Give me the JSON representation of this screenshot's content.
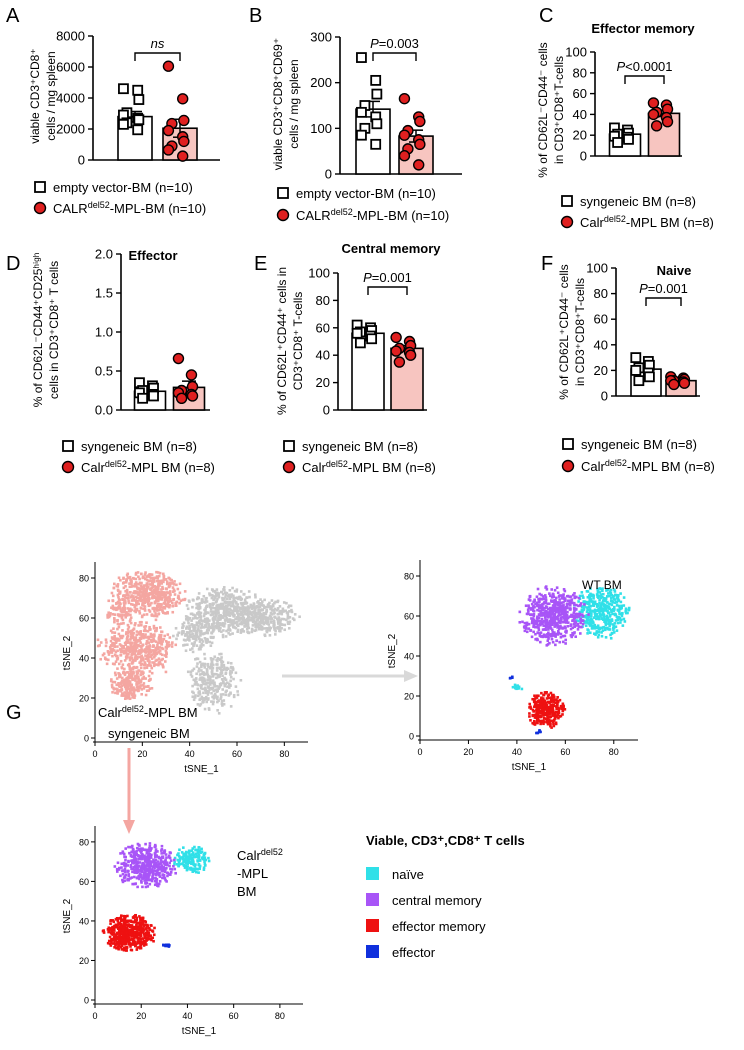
{
  "colors": {
    "control": "#000000",
    "mutant_fill": "#f7c5c0",
    "mutant_dot": "#e02020",
    "tsne_mut": "#f4a6a1",
    "tsne_syn": "#c9c9c9",
    "naive": "#30e0e8",
    "central_memory": "#a855f7",
    "effector_memory": "#ee1111",
    "effector": "#1030dd",
    "arrow": "#d9d9d9"
  },
  "panels": {
    "A": {
      "letter": "A",
      "ylabel": "viable CD3⁺CD8⁺ cells / mg spleen",
      "sig": "ns",
      "legend": [
        "empty vector-BM (n=10)",
        "CALR",
        "del52",
        "-MPL-BM (n=10)"
      ]
    },
    "B": {
      "letter": "B",
      "ylabel": "viable CD3⁺CD8⁺CD69⁺ cells / mg spleen",
      "sig": "P=0.003",
      "legend": [
        "empty vector-BM (n=10)",
        "CALR",
        "del52",
        "-MPL-BM (n=10)"
      ]
    },
    "C": {
      "letter": "C",
      "title": "Effector memory",
      "ylabel": "% of CD62L⁻CD44⁻ cells in CD3⁺CD8⁺T-cells",
      "sig": "P<0.0001",
      "legend": [
        "syngeneic BM (n=8)",
        "Calr",
        "del52",
        "-MPL BM (n=8)"
      ]
    },
    "D": {
      "letter": "D",
      "title": "Effector",
      "ylabel": "% of CD62L⁻CD44⁺CD25ʰⁱᵍʰ cells in CD3⁺CD8⁺ T cells",
      "legend": [
        "syngeneic BM (n=8)",
        "Calr",
        "del52",
        "-MPL BM (n=8)"
      ]
    },
    "E": {
      "letter": "E",
      "title": "Central memory",
      "ylabel": "% of CD62L⁺CD44⁺ cells in CD3⁺CD8⁺ T-cells",
      "sig": "P=0.001",
      "legend": [
        "syngeneic BM (n=8)",
        "Calr",
        "del52",
        "-MPL BM (n=8)"
      ]
    },
    "F": {
      "letter": "F",
      "title": "Naive",
      "ylabel": "% of CD62L⁺CD44⁻ cells in CD3⁺CD8⁺T-cells",
      "sig": "P=0.001",
      "legend": [
        "syngeneic BM (n=8)",
        "Calr",
        "del52",
        "-MPL BM (n=8)"
      ]
    },
    "G": {
      "letter": "G",
      "label_mut": [
        "Calr",
        "del52",
        "-MPL BM"
      ],
      "label_syn": "syngeneic BM",
      "wt_label": "WT BM",
      "mut_label": [
        "Calr",
        "del52",
        "-MPL",
        "BM"
      ],
      "legend_title": "Viable, CD3⁺,CD8⁺ T cells",
      "legend": [
        "naïve",
        "central memory",
        "effector memory",
        "effector"
      ]
    }
  },
  "chart_data": [
    {
      "type": "bar",
      "panel": "A",
      "categories": [
        "empty vector-BM",
        "CALRdel52-MPL-BM"
      ],
      "values": [
        2800,
        2050
      ],
      "errors": [
        330,
        580
      ],
      "ylim": [
        0,
        8000
      ],
      "yticks": [
        0,
        2000,
        4000,
        6000,
        8000
      ],
      "points": [
        [
          4600,
          4500,
          3900,
          3050,
          2900,
          2700,
          2600,
          2400,
          2300,
          1950
        ],
        [
          6050,
          3950,
          2550,
          2350,
          1900,
          1500,
          1200,
          900,
          650,
          250
        ]
      ]
    },
    {
      "type": "bar",
      "panel": "B",
      "categories": [
        "empty vector-BM",
        "CALRdel52-MPL-BM"
      ],
      "values": [
        142,
        83
      ],
      "errors": [
        17,
        13
      ],
      "ylim": [
        0,
        300
      ],
      "yticks": [
        0,
        100,
        200,
        300
      ],
      "points": [
        [
          255,
          205,
          175,
          150,
          135,
          125,
          110,
          100,
          85,
          65
        ],
        [
          165,
          125,
          115,
          95,
          85,
          75,
          65,
          55,
          40,
          20
        ]
      ]
    },
    {
      "type": "bar",
      "panel": "C",
      "categories": [
        "syngeneic BM",
        "Calrdel52-MPL BM"
      ],
      "values": [
        21,
        41
      ],
      "errors": [
        2,
        3
      ],
      "ylim": [
        0,
        100
      ],
      "yticks": [
        0,
        20,
        40,
        60,
        80,
        100
      ],
      "points": [
        [
          27,
          25,
          22,
          21,
          19,
          18,
          16,
          13
        ],
        [
          51,
          49,
          45,
          42,
          40,
          37,
          33,
          29
        ]
      ]
    },
    {
      "type": "bar",
      "panel": "D",
      "categories": [
        "syngeneic BM",
        "Calrdel52-MPL BM"
      ],
      "values": [
        0.24,
        0.29
      ],
      "errors": [
        0.03,
        0.08
      ],
      "ylim": [
        0,
        2.0
      ],
      "yticks": [
        0.0,
        0.5,
        1.0,
        1.5,
        2.0
      ],
      "points": [
        [
          0.35,
          0.31,
          0.28,
          0.25,
          0.22,
          0.2,
          0.18,
          0.15
        ],
        [
          0.66,
          0.45,
          0.3,
          0.25,
          0.22,
          0.2,
          0.18,
          0.15
        ]
      ]
    },
    {
      "type": "bar",
      "panel": "E",
      "categories": [
        "syngeneic BM",
        "Calrdel52-MPL BM"
      ],
      "values": [
        56,
        45
      ],
      "errors": [
        2,
        2
      ],
      "ylim": [
        0,
        100
      ],
      "yticks": [
        0,
        20,
        40,
        60,
        80,
        100
      ],
      "points": [
        [
          62,
          60,
          58,
          57,
          56,
          54,
          52,
          49
        ],
        [
          53,
          50,
          47,
          45,
          43,
          42,
          40,
          35
        ]
      ]
    },
    {
      "type": "bar",
      "panel": "F",
      "categories": [
        "syngeneic BM",
        "Calrdel52-MPL BM"
      ],
      "values": [
        21,
        12
      ],
      "errors": [
        2.5,
        1
      ],
      "ylim": [
        0,
        100
      ],
      "yticks": [
        0,
        20,
        40,
        60,
        80,
        100
      ],
      "points": [
        [
          30,
          27,
          24,
          22,
          20,
          18,
          15,
          12
        ],
        [
          15,
          14,
          13,
          12,
          12,
          11,
          10,
          9
        ]
      ]
    },
    {
      "type": "scatter",
      "panel": "G-combined",
      "xlabel": "tSNE_1",
      "ylabel": "tSNE_2",
      "xlim": [
        0,
        90
      ],
      "ylim": [
        0,
        85
      ],
      "xticks": [
        0,
        20,
        40,
        60,
        80
      ],
      "yticks": [
        0,
        20,
        40,
        60,
        80
      ],
      "clusters": [
        {
          "name": "Calrdel52-MPL BM",
          "color": "tsne_mut",
          "blobs": [
            [
              22,
              72,
              15,
              10,
              500
            ],
            [
              18,
              45,
              14,
              12,
              500
            ],
            [
              15,
              27,
              8,
              8,
              200
            ],
            [
              10,
              62,
              5,
              4,
              60
            ]
          ]
        },
        {
          "name": "syngeneic BM",
          "color": "tsne_syn",
          "blobs": [
            [
              55,
              63,
              15,
              11,
              500
            ],
            [
              72,
              60,
              13,
              8,
              300
            ],
            [
              42,
              52,
              8,
              8,
              150
            ],
            [
              50,
              28,
              10,
              14,
              300
            ]
          ]
        }
      ]
    },
    {
      "type": "scatter",
      "panel": "G-WT",
      "xlabel": "tSNE_1",
      "ylabel": "tSNE_2",
      "xlim": [
        0,
        90
      ],
      "ylim": [
        0,
        85
      ],
      "xticks": [
        0,
        20,
        40,
        60,
        80
      ],
      "yticks": [
        0,
        20,
        40,
        60,
        80
      ],
      "clusters": [
        {
          "name": "naïve",
          "color": "naive",
          "blobs": [
            [
              75,
              62,
              10,
              12,
              380
            ],
            [
              40,
              24,
              2,
              1.5,
              12
            ]
          ]
        },
        {
          "name": "central memory",
          "color": "central_memory",
          "blobs": [
            [
              55,
              60,
              12,
              13,
              550
            ]
          ]
        },
        {
          "name": "effector memory",
          "color": "effector_memory",
          "blobs": [
            [
              52,
              13,
              7,
              8,
              300
            ]
          ]
        },
        {
          "name": "effector",
          "color": "effector",
          "blobs": [
            [
              49,
              2,
              1,
              0.8,
              8
            ],
            [
              38,
              29,
              1,
              0.8,
              4
            ]
          ]
        }
      ]
    },
    {
      "type": "scatter",
      "panel": "G-Calr",
      "xlabel": "tSNE_1",
      "ylabel": "tSNE_2",
      "xlim": [
        0,
        90
      ],
      "ylim": [
        0,
        85
      ],
      "xticks": [
        0,
        20,
        40,
        60,
        80
      ],
      "yticks": [
        0,
        20,
        40,
        60,
        80
      ],
      "clusters": [
        {
          "name": "naïve",
          "color": "naive",
          "blobs": [
            [
              42,
              71,
              7,
              6,
              160
            ]
          ]
        },
        {
          "name": "central memory",
          "color": "central_memory",
          "blobs": [
            [
              22,
              68,
              12,
              10,
              450
            ]
          ]
        },
        {
          "name": "effector memory",
          "color": "effector_memory",
          "blobs": [
            [
              15,
              34,
              10,
              8,
              500
            ]
          ]
        },
        {
          "name": "effector",
          "color": "effector",
          "blobs": [
            [
              31,
              27.5,
              2,
              0.8,
              15
            ]
          ]
        }
      ]
    }
  ]
}
